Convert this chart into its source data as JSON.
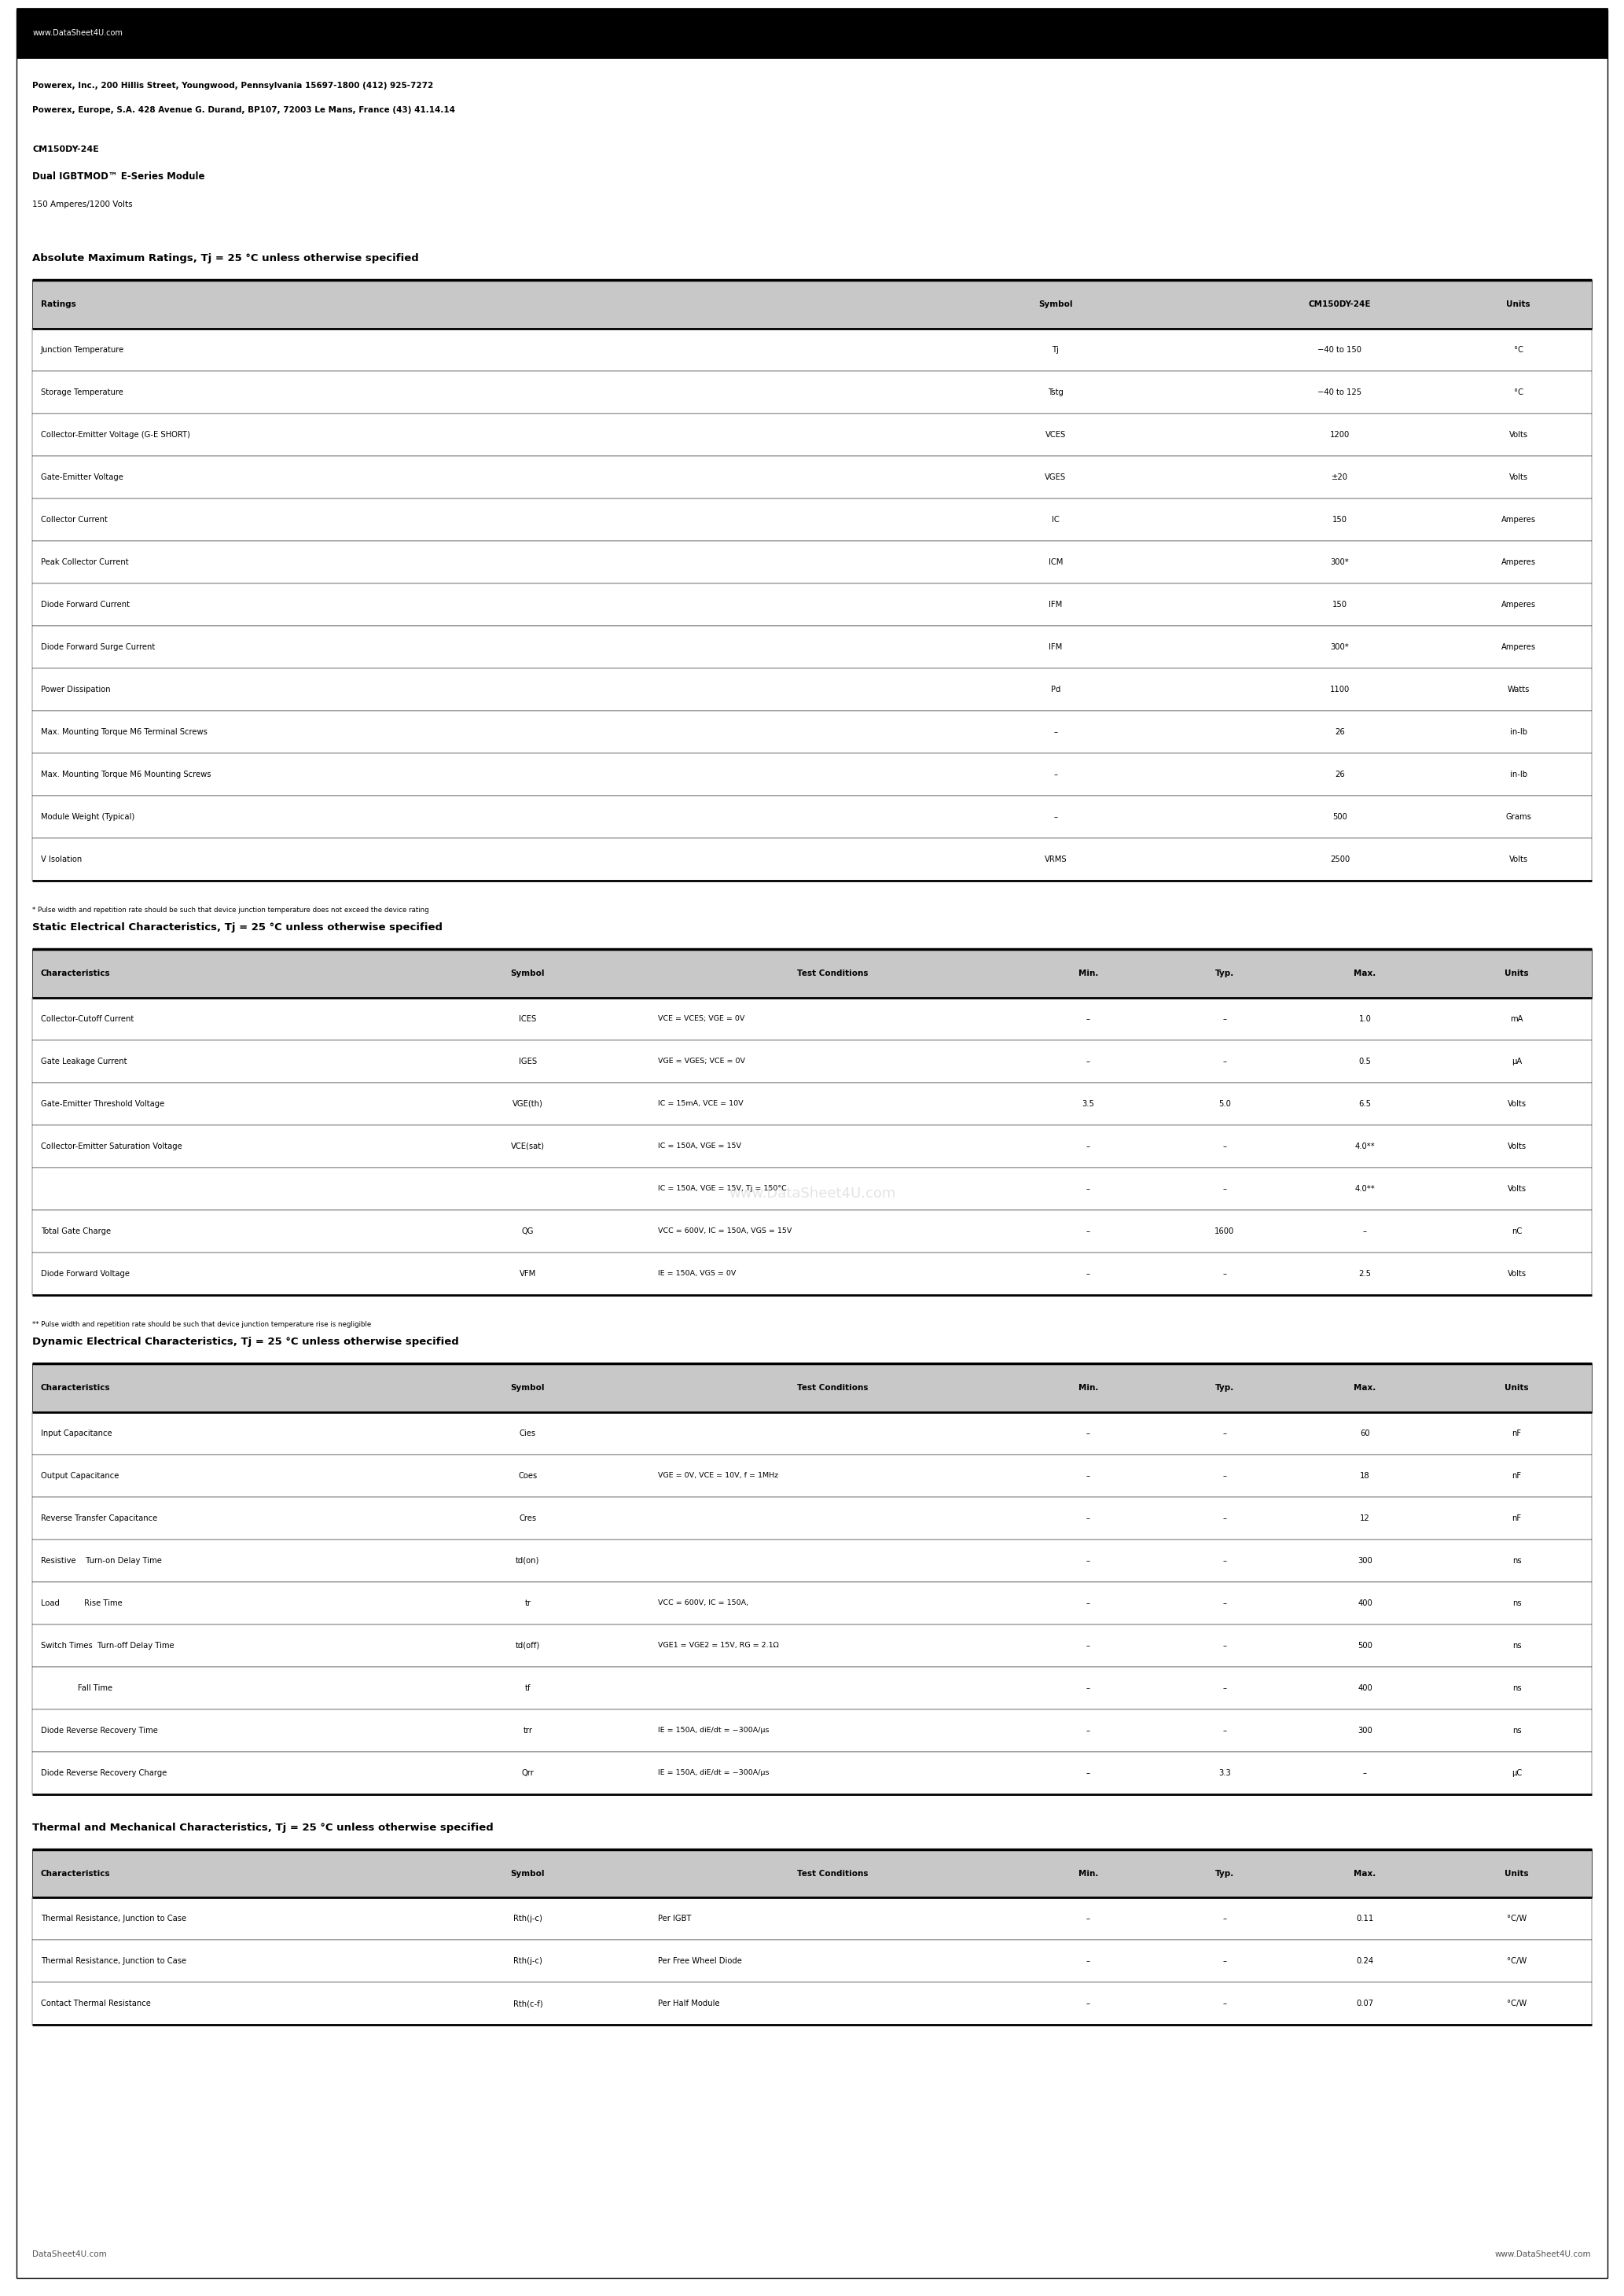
{
  "page_bg": "#ffffff",
  "header_bg": "#000000",
  "header_text_color": "#ffffff",
  "header_text": "www.DataSheet4U.com",
  "company_line1": "Powerex, Inc., 200 Hillis Street, Youngwood, Pennsylvania 15697-1800 (412) 925-7272",
  "company_line2": "Powerex, Europe, S.A. 428 Avenue G. Durand, BP107, 72003 Le Mans, France (43) 41.14.14",
  "product_line1": "CM150DY-24E",
  "product_line2": "Dual IGBTMOD™ E-Series Module",
  "product_line3": "150 Amperes/1200 Volts",
  "section1_title": "Absolute Maximum Ratings, Tj = 25 °C unless otherwise specified",
  "section1_headers": [
    "Ratings",
    "Symbol",
    "CM150DY-24E",
    "Units"
  ],
  "section1_rows": [
    [
      "Junction Temperature",
      "Tj",
      "−40 to 150",
      "°C"
    ],
    [
      "Storage Temperature",
      "Tstg",
      "−40 to 125",
      "°C"
    ],
    [
      "Collector-Emitter Voltage (G-E SHORT)",
      "VCES",
      "1200",
      "Volts"
    ],
    [
      "Gate-Emitter Voltage",
      "VGES",
      "±20",
      "Volts"
    ],
    [
      "Collector Current",
      "IC",
      "150",
      "Amperes"
    ],
    [
      "Peak Collector Current",
      "ICM",
      "300*",
      "Amperes"
    ],
    [
      "Diode Forward Current",
      "IFM",
      "150",
      "Amperes"
    ],
    [
      "Diode Forward Surge Current",
      "IFM",
      "300*",
      "Amperes"
    ],
    [
      "Power Dissipation",
      "Pd",
      "1100",
      "Watts"
    ],
    [
      "Max. Mounting Torque M6 Terminal Screws",
      "–",
      "26",
      "in-lb"
    ],
    [
      "Max. Mounting Torque M6 Mounting Screws",
      "–",
      "26",
      "in-lb"
    ],
    [
      "Module Weight (Typical)",
      "–",
      "500",
      "Grams"
    ],
    [
      "V Isolation",
      "VRMS",
      "2500",
      "Volts"
    ]
  ],
  "section1_sym_styles": [
    [
      "T",
      "j"
    ],
    [
      "T",
      "stg"
    ],
    [
      "V",
      "CES"
    ],
    [
      "V",
      "GES"
    ],
    [
      "I",
      "C"
    ],
    [
      "I",
      "CM"
    ],
    [
      "I",
      "FM"
    ],
    [
      "I",
      "FM"
    ],
    [
      "P",
      "d"
    ],
    [
      "–",
      ""
    ],
    [
      "–",
      ""
    ],
    [
      "–",
      ""
    ],
    [
      "V",
      "RMS"
    ]
  ],
  "section1_footnote": "* Pulse width and repetition rate should be such that device junction temperature does not exceed the device rating",
  "section2_title": "Static Electrical Characteristics, Tj = 25 °C unless otherwise specified",
  "section2_headers": [
    "Characteristics",
    "Symbol",
    "Test Conditions",
    "Min.",
    "Typ.",
    "Max.",
    "Units"
  ],
  "section2_rows": [
    [
      "Collector-Cutoff Current",
      "ICES",
      "VCE = VCES; VGE = 0V",
      "–",
      "–",
      "1.0",
      "mA"
    ],
    [
      "Gate Leakage Current",
      "IGES",
      "VGE = VGES; VCE = 0V",
      "–",
      "–",
      "0.5",
      "μA"
    ],
    [
      "Gate-Emitter Threshold Voltage",
      "VGE(th)",
      "IC = 15mA, VCE = 10V",
      "3.5",
      "5.0",
      "6.5",
      "Volts"
    ],
    [
      "Collector-Emitter Saturation Voltage",
      "VCE(sat)",
      "IC = 150A, VGE = 15V",
      "–",
      "–",
      "4.0**",
      "Volts"
    ],
    [
      "",
      "",
      "IC = 150A, VGE = 15V, Tj = 150°C",
      "–",
      "–",
      "4.0**",
      "Volts"
    ],
    [
      "Total Gate Charge",
      "QG",
      "VCC = 600V, IC = 150A, VGS = 15V",
      "–",
      "1600",
      "–",
      "nC"
    ],
    [
      "Diode Forward Voltage",
      "VFM",
      "IE = 150A, VGS = 0V",
      "–",
      "–",
      "2.5",
      "Volts"
    ]
  ],
  "section2_footnote": "** Pulse width and repetition rate should be such that device junction temperature rise is negligible",
  "section3_title": "Dynamic Electrical Characteristics, Tj = 25 °C unless otherwise specified",
  "section3_headers": [
    "Characteristics",
    "Symbol",
    "Test Conditions",
    "Min.",
    "Typ.",
    "Max.",
    "Units"
  ],
  "section3_rows_col0": [
    "Input Capacitance",
    "Output Capacitance",
    "Reverse Transfer Capacitance",
    "Resistive",
    "Load",
    "Switch Times",
    "",
    "Diode Reverse Recovery Time",
    "Diode Reverse Recovery Charge"
  ],
  "section3_rows_col0b": [
    "",
    "",
    "",
    "Turn-on Delay Time",
    "Rise Time",
    "Turn-off Delay Time",
    "Fall Time",
    "",
    ""
  ],
  "section3_rows": [
    [
      "Input Capacitance",
      "Cies",
      "",
      "–",
      "–",
      "60",
      "nF"
    ],
    [
      "Output Capacitance",
      "Coes",
      "VGE = 0V, VCE = 10V, f = 1MHz",
      "–",
      "–",
      "18",
      "nF"
    ],
    [
      "Reverse Transfer Capacitance",
      "Cres",
      "",
      "–",
      "–",
      "12",
      "nF"
    ],
    [
      "Resistive    Turn-on Delay Time",
      "td(on)",
      "",
      "–",
      "–",
      "300",
      "ns"
    ],
    [
      "Load          Rise Time",
      "tr",
      "VCC = 600V, IC = 150A,",
      "–",
      "–",
      "400",
      "ns"
    ],
    [
      "Switch Times  Turn-off Delay Time",
      "td(off)",
      "VGE1 = VGE2 = 15V, RG = 2.1Ω",
      "–",
      "–",
      "500",
      "ns"
    ],
    [
      "               Fall Time",
      "tf",
      "",
      "–",
      "–",
      "400",
      "ns"
    ],
    [
      "Diode Reverse Recovery Time",
      "trr",
      "IE = 150A, diE/dt = −300A/μs",
      "–",
      "–",
      "300",
      "ns"
    ],
    [
      "Diode Reverse Recovery Charge",
      "Qrr",
      "IE = 150A, diE/dt = −300A/μs",
      "–",
      "3.3",
      "–",
      "μC"
    ]
  ],
  "section4_title": "Thermal and Mechanical Characteristics, Tj = 25 °C unless otherwise specified",
  "section4_headers": [
    "Characteristics",
    "Symbol",
    "Test Conditions",
    "Min.",
    "Typ.",
    "Max.",
    "Units"
  ],
  "section4_rows": [
    [
      "Thermal Resistance, Junction to Case",
      "Rth(j-c)",
      "Per IGBT",
      "–",
      "–",
      "0.11",
      "°C/W"
    ],
    [
      "Thermal Resistance, Junction to Case",
      "Rth(j-c)",
      "Per Free Wheel Diode",
      "–",
      "–",
      "0.24",
      "°C/W"
    ],
    [
      "Contact Thermal Resistance",
      "Rth(c-f)",
      "Per Half Module",
      "–",
      "–",
      "0.07",
      "°C/W"
    ]
  ],
  "footer_left": "DataSheet4U.com",
  "footer_right": "www.DataSheet4U.com",
  "watermark": "www.DataSheet4U.com"
}
